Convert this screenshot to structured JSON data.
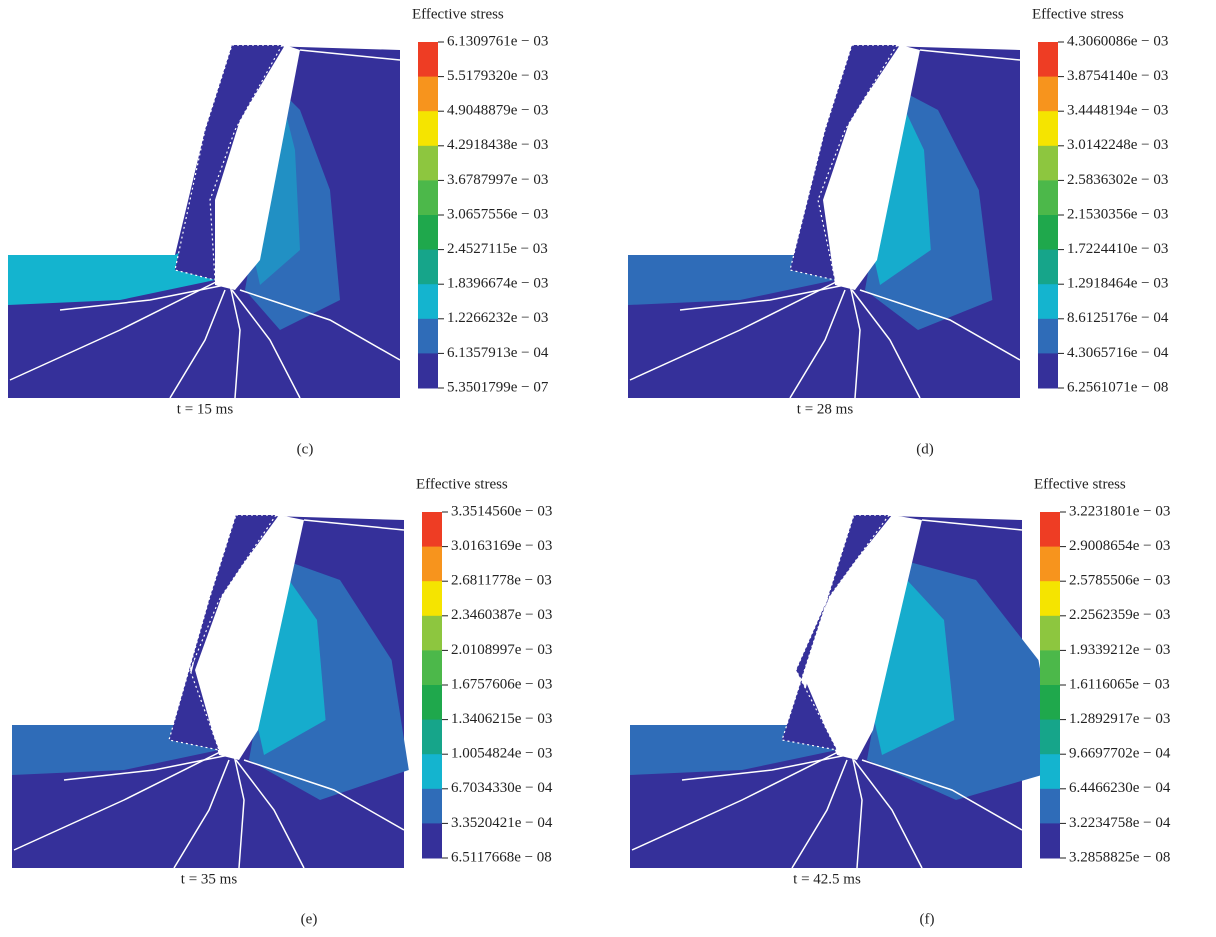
{
  "panels": [
    {
      "label": "(c)",
      "time": "t = 15 ms",
      "legend_title": "Effective stress",
      "legend_labels": [
        "6.1309761e − 03",
        "5.5179320e − 03",
        "4.9048879e − 03",
        "4.2918438e − 03",
        "3.6787997e − 03",
        "3.0657556e − 03",
        "2.4527115e − 03",
        "1.8396674e − 03",
        "1.2266232e − 03",
        "6.1357913e − 04",
        "5.3501799e − 07"
      ]
    },
    {
      "label": "(d)",
      "time": "t = 28 ms",
      "legend_title": "Effective stress",
      "legend_labels": [
        "4.3060086e − 03",
        "3.8754140e − 03",
        "3.4448194e − 03",
        "3.0142248e − 03",
        "2.5836302e − 03",
        "2.1530356e − 03",
        "1.7224410e − 03",
        "1.2918464e − 03",
        "8.6125176e − 04",
        "4.3065716e − 04",
        "6.2561071e − 08"
      ]
    },
    {
      "label": "(e)",
      "time": "t = 35 ms",
      "legend_title": "Effective stress",
      "legend_labels": [
        "3.3514560e − 03",
        "3.0163169e − 03",
        "2.6811778e − 03",
        "2.3460387e − 03",
        "2.0108997e − 03",
        "1.6757606e − 03",
        "1.3406215e − 03",
        "1.0054824e − 03",
        "6.7034330e − 04",
        "3.3520421e − 04",
        "6.5117668e − 08"
      ]
    },
    {
      "label": "(f)",
      "time": "t = 42.5 ms",
      "legend_title": "Effective stress",
      "legend_labels": [
        "3.2231801e − 03",
        "2.9008654e − 03",
        "2.5785506e − 03",
        "2.2562359e − 03",
        "1.9339212e − 03",
        "1.6116065e − 03",
        "1.2892917e − 03",
        "9.6697702e − 04",
        "6.4466230e − 04",
        "3.2234758e − 04",
        "3.2858825e − 08"
      ]
    }
  ],
  "colorbar_colors": [
    "#ee3d24",
    "#f7941d",
    "#f5e400",
    "#8dc63f",
    "#4cb84a",
    "#1fa84c",
    "#16a58a",
    "#14b4cf",
    "#2f6cb8",
    "#35309a"
  ]
}
